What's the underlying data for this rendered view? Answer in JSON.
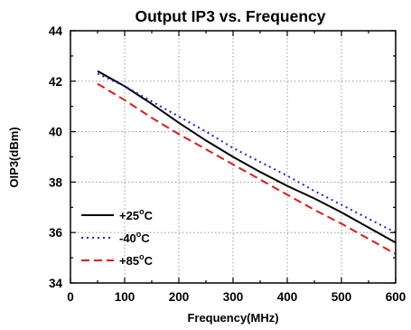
{
  "chart_data": {
    "type": "line",
    "title": "Output IP3 vs. Frequency",
    "xlabel": "Frequency(MHz)",
    "ylabel": "OIP3(dBm)",
    "xlim": [
      0,
      600
    ],
    "ylim": [
      34,
      44
    ],
    "x_ticks": [
      0,
      100,
      200,
      300,
      400,
      500,
      600
    ],
    "y_ticks": [
      34,
      36,
      38,
      40,
      42,
      44
    ],
    "x_tick_labels": [
      "0",
      "100",
      "200",
      "300",
      "400",
      "500",
      "600"
    ],
    "y_tick_labels": [
      "34",
      "36",
      "38",
      "40",
      "42",
      "44"
    ],
    "grid": true,
    "legend_position": "bottom-left",
    "series": [
      {
        "name": "+25°C",
        "name_main": "+25",
        "name_sup": "o",
        "name_unit": "C",
        "color": "#000000",
        "style": "solid",
        "x": [
          50,
          100,
          150,
          200,
          250,
          300,
          350,
          400,
          450,
          500,
          550,
          600
        ],
        "y": [
          42.4,
          41.8,
          41.1,
          40.35,
          39.65,
          39.0,
          38.4,
          37.85,
          37.35,
          36.8,
          36.2,
          35.6
        ]
      },
      {
        "name": "-40°C",
        "name_main": "-40",
        "name_sup": "o",
        "name_unit": "C",
        "color": "#1f1fd6",
        "style": "dotted",
        "x": [
          50,
          100,
          150,
          200,
          250,
          300,
          350,
          400,
          450,
          500,
          550,
          600
        ],
        "y": [
          42.3,
          41.8,
          41.2,
          40.6,
          40.0,
          39.35,
          38.8,
          38.25,
          37.65,
          37.1,
          36.55,
          36.0
        ]
      },
      {
        "name": "+85°C",
        "name_main": "+85",
        "name_sup": "o",
        "name_unit": "C",
        "color": "#e01a1a",
        "style": "dashed",
        "x": [
          50,
          100,
          150,
          200,
          250,
          300,
          350,
          400,
          450,
          500,
          550,
          600
        ],
        "y": [
          41.9,
          41.25,
          40.55,
          39.9,
          39.3,
          38.7,
          38.1,
          37.5,
          36.9,
          36.35,
          35.75,
          35.15
        ]
      }
    ]
  }
}
